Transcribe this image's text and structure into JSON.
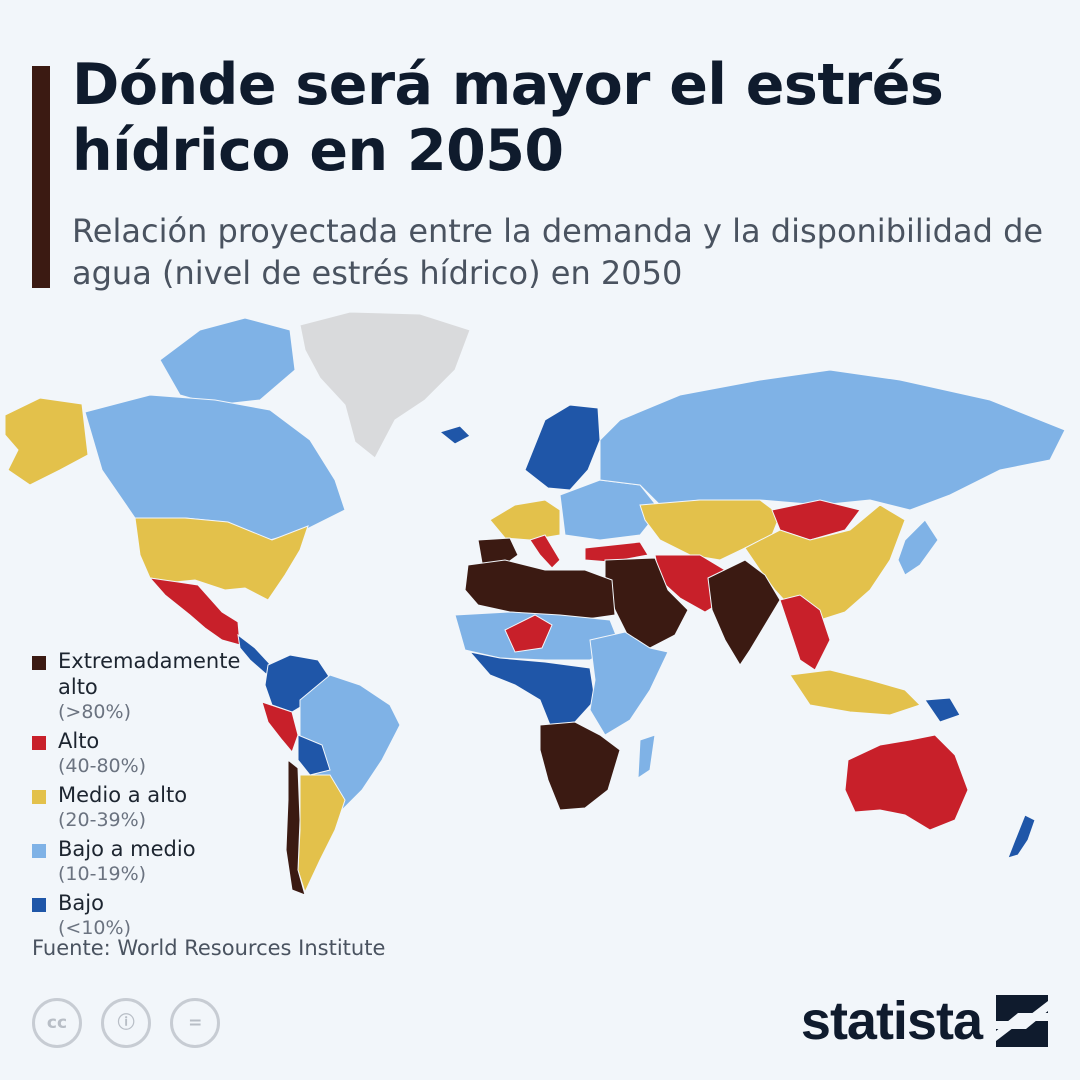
{
  "title": "Dónde será mayor el estrés hídrico en 2050",
  "subtitle": "Relación proyectada entre la demanda y la disponibilidad de agua (nivel de estrés hídrico) en 2050",
  "colors": {
    "accent_bar": "#3b1a12",
    "extremely_high": "#3b1a12",
    "high": "#c8202a",
    "medium_high": "#e3c14b",
    "low_medium": "#7fb2e6",
    "low": "#1f56a8",
    "no_data": "#d9dadc"
  },
  "legend": [
    {
      "label": "Extremadamente alto",
      "range": "(>80%)",
      "color": "#3b1a12"
    },
    {
      "label": "Alto",
      "range": "(40-80%)",
      "color": "#c8202a"
    },
    {
      "label": "Medio a alto",
      "range": "(20-39%)",
      "color": "#e3c14b"
    },
    {
      "label": "Bajo a medio",
      "range": "(10-19%)",
      "color": "#7fb2e6"
    },
    {
      "label": "Bajo",
      "range": "(<10%)",
      "color": "#1f56a8"
    }
  ],
  "regions": [
    {
      "name": "greenland",
      "level": "no_data"
    },
    {
      "name": "alaska",
      "level": "medium_high"
    },
    {
      "name": "canada",
      "level": "low_medium"
    },
    {
      "name": "canadian-arctic",
      "level": "low_medium"
    },
    {
      "name": "usa",
      "level": "medium_high"
    },
    {
      "name": "mexico",
      "level": "high"
    },
    {
      "name": "central-america",
      "level": "low"
    },
    {
      "name": "colombia-venezuela",
      "level": "low"
    },
    {
      "name": "brazil",
      "level": "low_medium"
    },
    {
      "name": "peru",
      "level": "high"
    },
    {
      "name": "bolivia",
      "level": "low"
    },
    {
      "name": "argentina",
      "level": "medium_high"
    },
    {
      "name": "chile",
      "level": "extremely_high"
    },
    {
      "name": "iceland",
      "level": "low"
    },
    {
      "name": "scandinavia",
      "level": "low"
    },
    {
      "name": "western-europe",
      "level": "medium_high"
    },
    {
      "name": "eastern-europe",
      "level": "low_medium"
    },
    {
      "name": "iberia",
      "level": "extremely_high"
    },
    {
      "name": "italy",
      "level": "high"
    },
    {
      "name": "turkey",
      "level": "high"
    },
    {
      "name": "russia",
      "level": "low_medium"
    },
    {
      "name": "north-africa",
      "level": "extremely_high"
    },
    {
      "name": "sahel",
      "level": "low_medium"
    },
    {
      "name": "niger",
      "level": "high"
    },
    {
      "name": "central-africa",
      "level": "low"
    },
    {
      "name": "east-africa",
      "level": "low_medium"
    },
    {
      "name": "southern-africa",
      "level": "extremely_high"
    },
    {
      "name": "madagascar",
      "level": "low_medium"
    },
    {
      "name": "arabia",
      "level": "extremely_high"
    },
    {
      "name": "iran",
      "level": "high"
    },
    {
      "name": "central-asia",
      "level": "medium_high"
    },
    {
      "name": "india",
      "level": "extremely_high"
    },
    {
      "name": "mongolia",
      "level": "high"
    },
    {
      "name": "china",
      "level": "medium_high"
    },
    {
      "name": "southeast-asia",
      "level": "high"
    },
    {
      "name": "indonesia",
      "level": "medium_high"
    },
    {
      "name": "japan",
      "level": "low_medium"
    },
    {
      "name": "australia",
      "level": "high"
    },
    {
      "name": "new-zealand",
      "level": "low"
    },
    {
      "name": "papua-new-guinea",
      "level": "low"
    }
  ],
  "source": "Fuente: World Resources Institute",
  "license_icons": [
    "cc",
    "ⓘ",
    "="
  ],
  "brand": "statista"
}
